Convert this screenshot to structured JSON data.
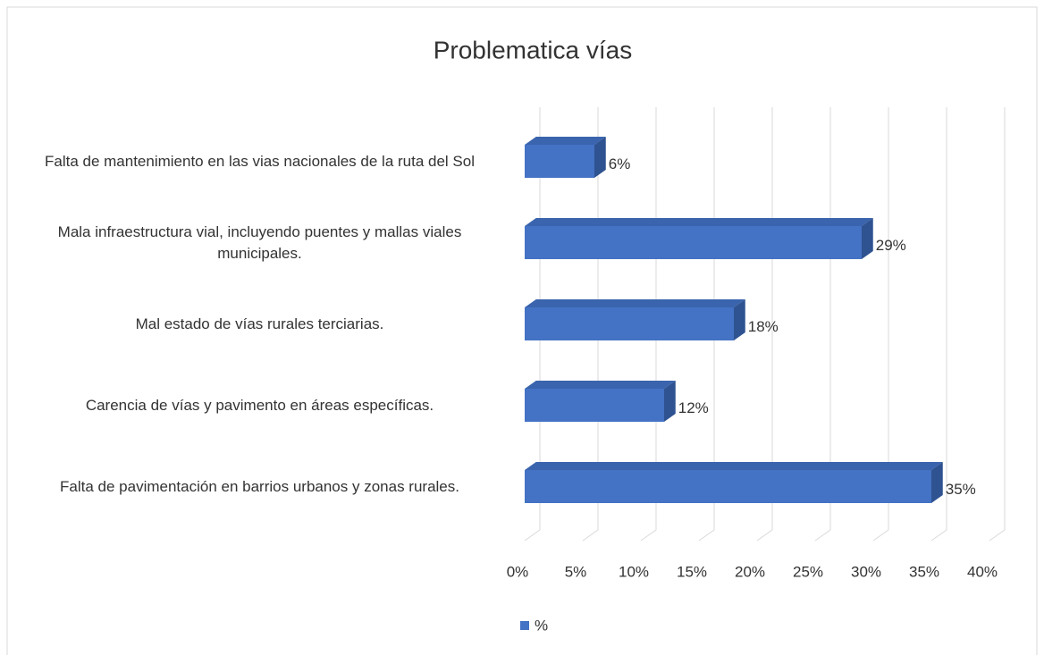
{
  "chart_data": {
    "type": "bar",
    "orientation": "horizontal",
    "title": "Problematica vías",
    "categories": [
      "Falta de mantenimiento en las vias nacionales de la ruta del Sol",
      "Mala infraestructura vial, incluyendo puentes y mallas viales municipales.",
      "Mal estado de vías rurales terciarias.",
      "Carencia de vías y pavimento en áreas específicas.",
      "Falta de pavimentación en barrios urbanos y zonas rurales."
    ],
    "series": [
      {
        "name": "%",
        "color": "#4472c4",
        "values": [
          6,
          29,
          18,
          12,
          35
        ],
        "value_labels": [
          "6%",
          "29%",
          "18%",
          "12%",
          "35%"
        ]
      }
    ],
    "xlim": [
      0,
      40
    ],
    "xticks": [
      {
        "value": 0,
        "label": "0%"
      },
      {
        "value": 5,
        "label": "5%"
      },
      {
        "value": 10,
        "label": "10%"
      },
      {
        "value": 15,
        "label": "15%"
      },
      {
        "value": 20,
        "label": "20%"
      },
      {
        "value": 25,
        "label": "25%"
      },
      {
        "value": 30,
        "label": "30%"
      },
      {
        "value": 35,
        "label": "35%"
      },
      {
        "value": 40,
        "label": "40%"
      }
    ],
    "grid": true,
    "legend": "bottom"
  }
}
